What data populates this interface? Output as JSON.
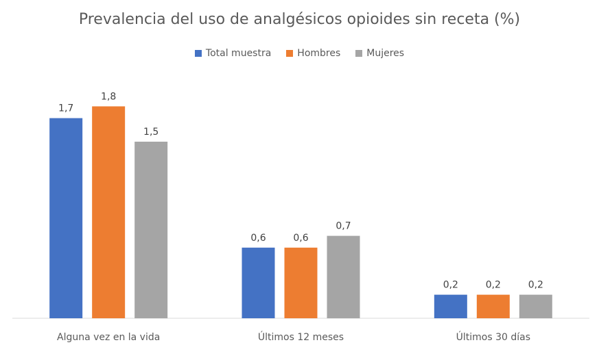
{
  "chart_data": {
    "type": "bar",
    "title": "Prevalencia del uso de analgésicos opioides sin receta (%)",
    "xlabel": "",
    "ylabel": "",
    "categories": [
      "Alguna vez en la vida",
      "Últimos 12 meses",
      "Últimos 30 días"
    ],
    "series": [
      {
        "name": "Total muestra",
        "color": "#4472C4",
        "values": [
          1.7,
          0.6,
          0.2
        ],
        "labels": [
          "1,7",
          "0,6",
          "0,2"
        ]
      },
      {
        "name": "Hombres",
        "color": "#ED7D31",
        "values": [
          1.8,
          0.6,
          0.2
        ],
        "labels": [
          "1,8",
          "0,6",
          "0,2"
        ]
      },
      {
        "name": "Mujeres",
        "color": "#A5A5A5",
        "values": [
          1.5,
          0.7,
          0.2
        ],
        "labels": [
          "1,5",
          "0,7",
          "0,2"
        ]
      }
    ],
    "ylim": [
      0,
      1.8
    ],
    "grid": false,
    "legend": "top"
  }
}
